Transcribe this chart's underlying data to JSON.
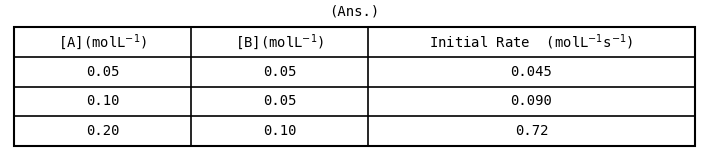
{
  "col_headers": [
    "[A](mol L⁻¹)",
    "[B](mol L⁻¹)",
    "Initial Rate  (mol L⁻¹s⁻¹)"
  ],
  "col_headers_raw": [
    "[A](molL$^{-1}$)",
    "[B](molL$^{-1}$)",
    "Initial Rate  (molL$^{-1}$s$^{-1}$)"
  ],
  "rows": [
    [
      "0.05",
      "0.05",
      "0.045"
    ],
    [
      "0.10",
      "0.05",
      "0.090"
    ],
    [
      "0.20",
      "0.10",
      "0.72"
    ]
  ],
  "background_color": "#ffffff",
  "border_color": "#000000",
  "header_font_size": 10,
  "cell_font_size": 10,
  "title_text": "(Ans.)",
  "title_font_size": 10
}
